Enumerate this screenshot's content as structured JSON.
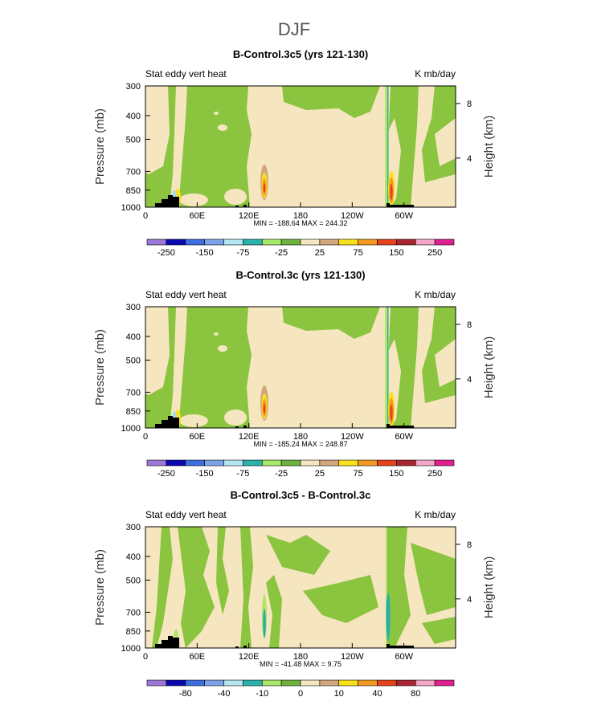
{
  "main_title": "DJF",
  "colors": {
    "ink": "#000000",
    "green": "#8BC43F",
    "light_green": "#B5E36A",
    "tan": "#F6E6C0",
    "brown": "#D2A77D",
    "yellow": "#F8E11A",
    "orange": "#F39A1E",
    "red": "#E5431E",
    "teal": "#27AFA5",
    "light_blue": "#A9DDE8",
    "terrain": "#000000"
  },
  "chart_data": [
    {
      "type": "heatmap",
      "title": "B-Control.3c5 (yrs 121-130)",
      "left_label": "Stat eddy vert heat",
      "right_label": "K mb/day",
      "ylabel": "Pressure (mb)",
      "ylabel_right": "Height (km)",
      "xlim": [
        0,
        360
      ],
      "x_ticks": [
        "0",
        "60E",
        "120E",
        "180",
        "120W",
        "60W"
      ],
      "y_ticks": [
        "300",
        "400",
        "500",
        "700",
        "850",
        "1000"
      ],
      "right_ticks": [
        "8",
        "4"
      ],
      "stats": "MIN = -188.64   MAX = 244.32",
      "colorbar": {
        "colors": [
          "#9B77D6",
          "#0C08B0",
          "#3E6DDE",
          "#7CA2EA",
          "#B3E6EE",
          "#2CB2AA",
          "#A8E868",
          "#6CB23C",
          "#F6E6C0",
          "#D2A77D",
          "#F8E11A",
          "#F39A1E",
          "#E5431E",
          "#A92530",
          "#F3A6C6",
          "#E0208F"
        ],
        "labels": [
          "-250",
          "-150",
          "-75",
          "-25",
          "25",
          "75",
          "150",
          "250"
        ]
      }
    },
    {
      "type": "heatmap",
      "title": "B-Control.3c (yrs 121-130)",
      "left_label": "Stat eddy vert heat",
      "right_label": "K mb/day",
      "ylabel": "Pressure (mb)",
      "ylabel_right": "Height (km)",
      "xlim": [
        0,
        360
      ],
      "x_ticks": [
        "0",
        "60E",
        "120E",
        "180",
        "120W",
        "60W"
      ],
      "y_ticks": [
        "300",
        "400",
        "500",
        "700",
        "850",
        "1000"
      ],
      "right_ticks": [
        "8",
        "4"
      ],
      "stats": "MIN = -185.24   MAX = 248.87",
      "colorbar": {
        "colors": [
          "#9B77D6",
          "#0C08B0",
          "#3E6DDE",
          "#7CA2EA",
          "#B3E6EE",
          "#2CB2AA",
          "#A8E868",
          "#6CB23C",
          "#F6E6C0",
          "#D2A77D",
          "#F8E11A",
          "#F39A1E",
          "#E5431E",
          "#A92530",
          "#F3A6C6",
          "#E0208F"
        ],
        "labels": [
          "-250",
          "-150",
          "-75",
          "-25",
          "25",
          "75",
          "150",
          "250"
        ]
      }
    },
    {
      "type": "heatmap",
      "title": "B-Control.3c5 - B-Control.3c",
      "left_label": "Stat eddy vert heat",
      "right_label": "K mb/day",
      "ylabel": "Pressure (mb)",
      "ylabel_right": "Height (km)",
      "xlim": [
        0,
        360
      ],
      "x_ticks": [
        "0",
        "60E",
        "120E",
        "180",
        "120W",
        "60W"
      ],
      "y_ticks": [
        "300",
        "400",
        "500",
        "700",
        "850",
        "1000"
      ],
      "right_ticks": [
        "8",
        "4"
      ],
      "stats": "MIN = -41.48   MAX =   9.75",
      "colorbar": {
        "colors": [
          "#9B77D6",
          "#0C08B0",
          "#3E6DDE",
          "#7CA2EA",
          "#B3E6EE",
          "#2CB2AA",
          "#A8E868",
          "#6CB23C",
          "#F6E6C0",
          "#D2A77D",
          "#F8E11A",
          "#F39A1E",
          "#E5431E",
          "#A92530",
          "#F3A6C6",
          "#E0208F"
        ],
        "labels": [
          "-80",
          "-40",
          "-10",
          "0",
          "10",
          "40",
          "80"
        ]
      }
    }
  ]
}
